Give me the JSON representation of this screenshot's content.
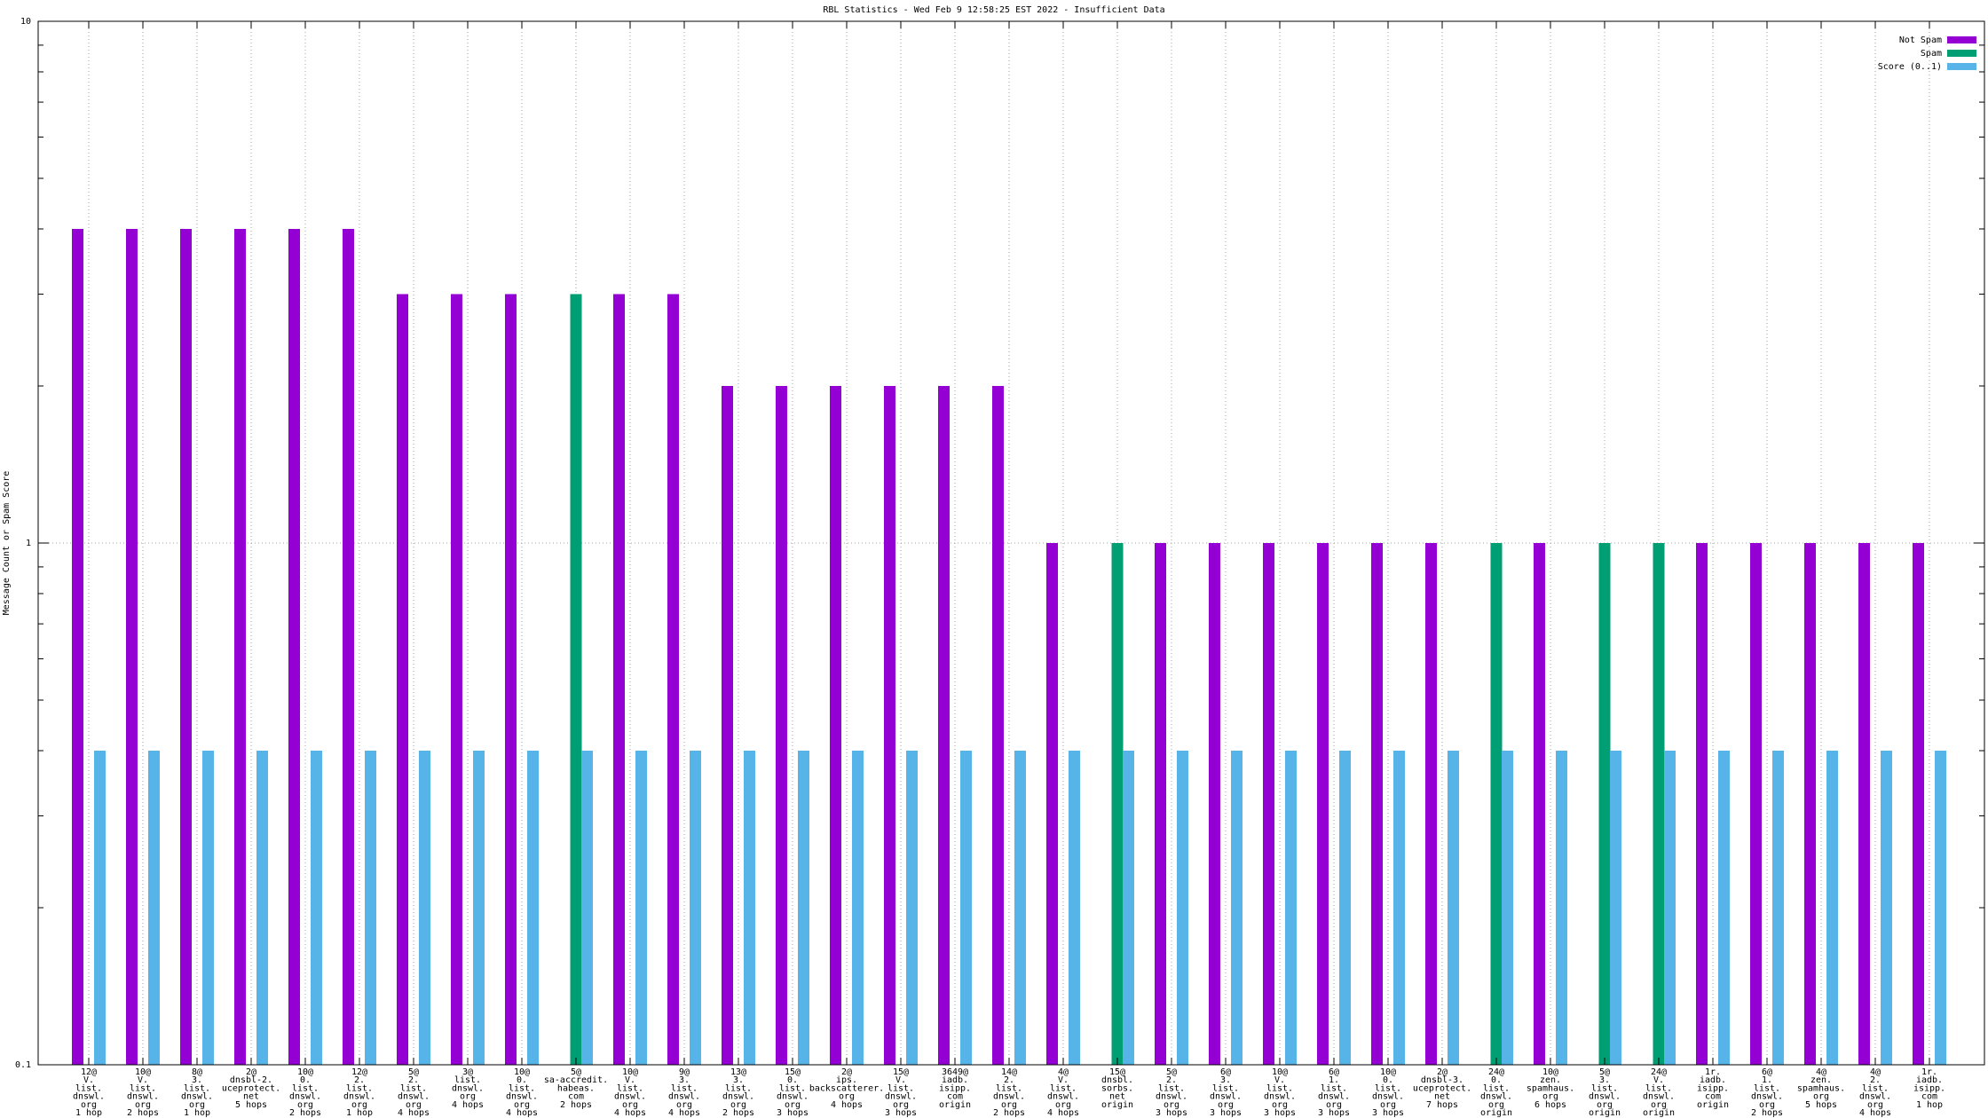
{
  "chart_data": {
    "type": "bar",
    "title": "RBL Statistics - Wed Feb  9 12:58:25 EST 2022 - Insufficient Data",
    "y_label": "Message Count or Spam Score",
    "log_scale": true,
    "grid": true,
    "legend_position": "top-right",
    "ylim": [
      0.1,
      10
    ],
    "yticks": [
      0.1,
      1,
      10
    ],
    "minor_yticks": [
      0.2,
      0.3,
      0.4,
      0.5,
      0.6,
      0.7,
      0.8,
      0.9,
      2,
      3,
      4,
      5,
      6,
      7,
      8,
      9
    ],
    "categories": [
      [
        "12@",
        "V.",
        "list.",
        "dnswl.",
        "org",
        "1 hop"
      ],
      [
        "10@",
        "V.",
        "list.",
        "dnswl.",
        "org",
        "2 hops"
      ],
      [
        "8@",
        "3.",
        "list.",
        "dnswl.",
        "org",
        "1 hop"
      ],
      [
        "2@",
        "dnsbl-2.",
        "uceprotect.",
        "net",
        "5 hops"
      ],
      [
        "10@",
        "0.",
        "list.",
        "dnswl.",
        "org",
        "2 hops"
      ],
      [
        "12@",
        "2.",
        "list.",
        "dnswl.",
        "org",
        "1 hop"
      ],
      [
        "5@",
        "2.",
        "list.",
        "dnswl.",
        "org",
        "4 hops"
      ],
      [
        "3@",
        "list.",
        "dnswl.",
        "org",
        "4 hops"
      ],
      [
        "10@",
        "0.",
        "list.",
        "dnswl.",
        "org",
        "4 hops"
      ],
      [
        "5@",
        "sa-accredit.",
        "habeas.",
        "com",
        "2 hops"
      ],
      [
        "10@",
        "V.",
        "list.",
        "dnswl.",
        "org",
        "4 hops"
      ],
      [
        "9@",
        "3.",
        "list.",
        "dnswl.",
        "org",
        "4 hops"
      ],
      [
        "13@",
        "3.",
        "list.",
        "dnswl.",
        "org",
        "2 hops"
      ],
      [
        "15@",
        "0.",
        "list.",
        "dnswl.",
        "org",
        "3 hops"
      ],
      [
        "2@",
        "ips.",
        "backscatterer.",
        "org",
        "4 hops"
      ],
      [
        "15@",
        "V.",
        "list.",
        "dnswl.",
        "org",
        "3 hops"
      ],
      [
        "3649@",
        "iadb.",
        "isipp.",
        "com",
        "origin"
      ],
      [
        "14@",
        "2.",
        "list.",
        "dnswl.",
        "org",
        "2 hops"
      ],
      [
        "4@",
        "V.",
        "list.",
        "dnswl.",
        "org",
        "4 hops"
      ],
      [
        "15@",
        "dnsbl.",
        "sorbs.",
        "net",
        "origin"
      ],
      [
        "5@",
        "2.",
        "list.",
        "dnswl.",
        "org",
        "3 hops"
      ],
      [
        "6@",
        "3.",
        "list.",
        "dnswl.",
        "org",
        "3 hops"
      ],
      [
        "10@",
        "V.",
        "list.",
        "dnswl.",
        "org",
        "3 hops"
      ],
      [
        "6@",
        "1.",
        "list.",
        "dnswl.",
        "org",
        "3 hops"
      ],
      [
        "10@",
        "0.",
        "list.",
        "dnswl.",
        "org",
        "3 hops"
      ],
      [
        "2@",
        "dnsbl-3.",
        "uceprotect.",
        "net",
        "7 hops"
      ],
      [
        "24@",
        "0.",
        "list.",
        "dnswl.",
        "org",
        "origin"
      ],
      [
        "10@",
        "zen.",
        "spamhaus.",
        "org",
        "6 hops"
      ],
      [
        "5@",
        "3.",
        "list.",
        "dnswl.",
        "org",
        "origin"
      ],
      [
        "24@",
        "V.",
        "list.",
        "dnswl.",
        "org",
        "origin"
      ],
      [
        "1r.",
        "iadb.",
        "isipp.",
        "com",
        "origin"
      ],
      [
        "6@",
        "1.",
        "list.",
        "dnswl.",
        "org",
        "2 hops"
      ],
      [
        "4@",
        "zen.",
        "spamhaus.",
        "org",
        "5 hops"
      ],
      [
        "4@",
        "2.",
        "list.",
        "dnswl.",
        "org",
        "4 hops"
      ],
      [
        "1r.",
        "iadb.",
        "isipp.",
        "com",
        "1 hop"
      ]
    ],
    "series": [
      {
        "name": "Not Spam",
        "color": "#9400d3",
        "values": [
          4,
          4,
          4,
          4,
          4,
          4,
          3,
          3,
          3,
          null,
          3,
          3,
          2,
          2,
          2,
          2,
          2,
          2,
          1,
          null,
          1,
          1,
          1,
          1,
          1,
          1,
          null,
          1,
          null,
          null,
          1,
          1,
          1,
          1,
          1
        ]
      },
      {
        "name": "Spam",
        "color": "#009e73",
        "values": [
          null,
          null,
          null,
          null,
          null,
          null,
          null,
          null,
          null,
          3,
          null,
          null,
          null,
          null,
          null,
          null,
          null,
          null,
          null,
          1,
          null,
          null,
          null,
          null,
          null,
          null,
          1,
          null,
          1,
          1,
          null,
          null,
          null,
          null,
          null
        ]
      },
      {
        "name": "Score (0..1)",
        "color": "#56b4e9",
        "values": [
          0.4,
          0.4,
          0.4,
          0.4,
          0.4,
          0.4,
          0.4,
          0.4,
          0.4,
          0.4,
          0.4,
          0.4,
          0.4,
          0.4,
          0.4,
          0.4,
          0.4,
          0.4,
          0.4,
          0.4,
          0.4,
          0.4,
          0.4,
          0.4,
          0.4,
          0.4,
          0.4,
          0.4,
          0.4,
          0.4,
          0.4,
          0.4,
          0.4,
          0.4,
          0.4
        ]
      }
    ]
  }
}
